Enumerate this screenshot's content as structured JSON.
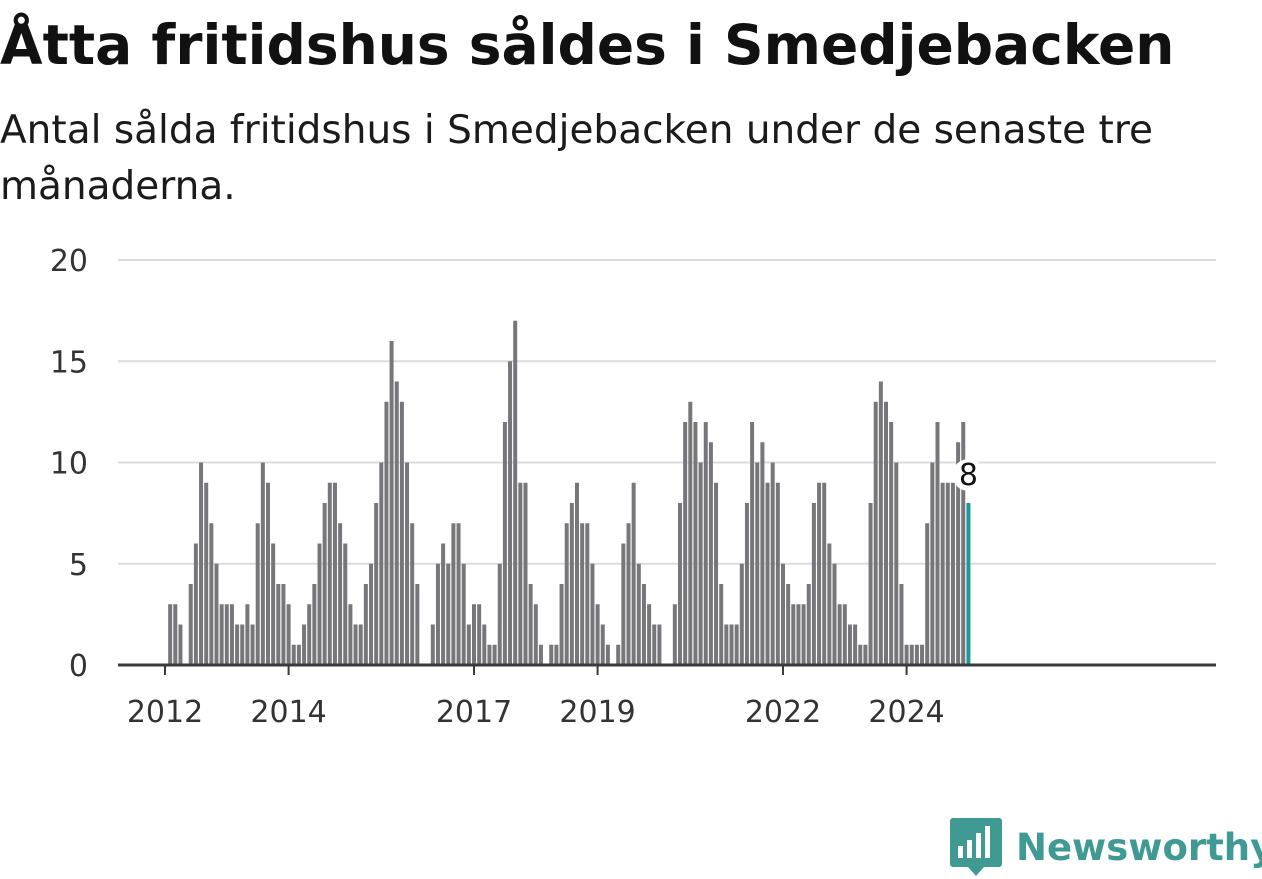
{
  "chart_data": {
    "type": "bar",
    "title": "Åtta fritidshus såldes i Smedjebacken",
    "subtitle": "Antal sålda fritidshus i Smedjebacken under de senaste tre månaderna.",
    "start_year": 2012,
    "start_month": 1,
    "values": [
      0,
      3,
      3,
      2,
      0,
      4,
      6,
      10,
      9,
      7,
      5,
      3,
      3,
      3,
      2,
      2,
      3,
      2,
      7,
      10,
      9,
      6,
      4,
      4,
      3,
      1,
      1,
      2,
      3,
      4,
      6,
      8,
      9,
      9,
      7,
      6,
      3,
      2,
      2,
      4,
      5,
      8,
      10,
      13,
      16,
      14,
      13,
      10,
      7,
      4,
      0,
      0,
      2,
      5,
      6,
      5,
      7,
      7,
      5,
      2,
      3,
      3,
      2,
      1,
      1,
      5,
      12,
      15,
      17,
      9,
      9,
      4,
      3,
      1,
      0,
      1,
      1,
      4,
      7,
      8,
      9,
      7,
      7,
      5,
      3,
      2,
      1,
      0,
      1,
      6,
      7,
      9,
      5,
      4,
      3,
      2,
      2,
      0,
      0,
      3,
      8,
      12,
      13,
      12,
      10,
      12,
      11,
      9,
      4,
      2,
      2,
      2,
      5,
      8,
      12,
      10,
      11,
      9,
      10,
      9,
      5,
      4,
      3,
      3,
      3,
      4,
      8,
      9,
      9,
      6,
      5,
      3,
      3,
      2,
      2,
      1,
      1,
      8,
      13,
      14,
      13,
      12,
      10,
      4,
      1,
      1,
      1,
      1,
      7,
      10,
      12,
      9,
      9,
      9,
      11,
      12,
      8
    ],
    "highlight_label": "8",
    "x_ticks": [
      "2012",
      "2014",
      "2017",
      "2019",
      "2022",
      "2024"
    ],
    "y_ticks": [
      "0",
      "5",
      "10",
      "15",
      "20"
    ],
    "ylim": [
      0,
      20
    ],
    "grid": true,
    "colors": {
      "bar": "#77767b",
      "highlight": "#1a9c94",
      "grid": "#dcdcdc",
      "baseline": "#3a3a3a"
    }
  },
  "branding": {
    "name": "Newsworthy",
    "color": "#3e9a93",
    "icon": "chart-speech-bubble-icon"
  }
}
